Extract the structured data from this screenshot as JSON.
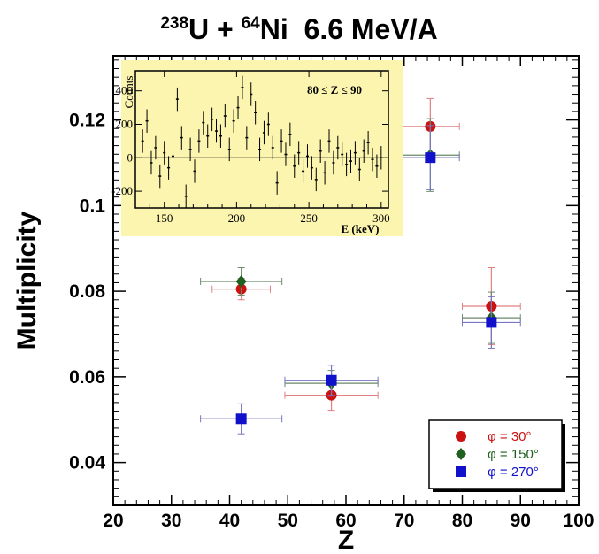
{
  "chart_data": [
    {
      "type": "scatter",
      "title_parts": {
        "a_mass": "238",
        "a_sym": "U + ",
        "b_mass": "64",
        "b_sym": "Ni",
        "rest": "  6.6 MeV/A"
      },
      "xlabel": "Z",
      "ylabel": "Multiplicity",
      "xlim": [
        20,
        100
      ],
      "ylim": [
        0.03,
        0.135
      ],
      "xticks": [
        20,
        30,
        40,
        50,
        60,
        70,
        80,
        90,
        100
      ],
      "yticks": [
        0.04,
        0.06,
        0.08,
        0.1,
        0.12
      ],
      "ytick_labels": [
        "0.04",
        "0.06",
        "0.08",
        "0.1",
        "0.12"
      ],
      "grid": false,
      "legend_position": "bottom-right",
      "series": [
        {
          "name": "φ = 30°",
          "color": "#cc1111",
          "marker": "circle",
          "errcolor": "#e08080",
          "points": [
            {
              "x": 42,
              "y": 0.0805,
              "xerr": 5,
              "yerr": 0.0025
            },
            {
              "x": 57.5,
              "y": 0.0557,
              "xerr": 8,
              "yerr": 0.0035
            },
            {
              "x": 74.5,
              "y": 0.1185,
              "xerr": 5,
              "yerr": 0.0065
            },
            {
              "x": 85,
              "y": 0.0765,
              "xerr": 5,
              "yerr": 0.009
            }
          ]
        },
        {
          "name": "φ = 150°",
          "color": "#1f5f1f",
          "marker": "diamond",
          "errcolor": "#6a8a6a",
          "points": [
            {
              "x": 42,
              "y": 0.0823,
              "xerr": 7,
              "yerr": 0.0032
            },
            {
              "x": 57.5,
              "y": 0.0585,
              "xerr": 8,
              "yerr": 0.003
            },
            {
              "x": 74.5,
              "y": 0.1118,
              "xerr": 5,
              "yerr": 0.0085
            },
            {
              "x": 85,
              "y": 0.0738,
              "xerr": 5,
              "yerr": 0.006
            }
          ]
        },
        {
          "name": "φ = 270°",
          "color": "#1111cc",
          "marker": "square",
          "errcolor": "#7777c0",
          "points": [
            {
              "x": 42,
              "y": 0.0502,
              "xerr": 7,
              "yerr": 0.0035
            },
            {
              "x": 57.5,
              "y": 0.0592,
              "xerr": 8,
              "yerr": 0.0035
            },
            {
              "x": 74.5,
              "y": 0.1112,
              "xerr": 5,
              "yerr": 0.0075
            },
            {
              "x": 85,
              "y": 0.0727,
              "xerr": 5,
              "yerr": 0.006
            }
          ]
        }
      ]
    },
    {
      "type": "scatter",
      "background": "#fbf5b0",
      "ylabel": "Counts",
      "xlabel": "E (keV)",
      "annotation": "80 ≤ Z ≤ 90",
      "xlim": [
        130,
        305
      ],
      "ylim": [
        -300,
        520
      ],
      "xticks": [
        150,
        200,
        250,
        300
      ],
      "yticks": [
        -200,
        0,
        200,
        400
      ],
      "zero_line": true,
      "points": [
        {
          "x": 135,
          "y": 100,
          "yerr": 140
        },
        {
          "x": 138,
          "y": 220,
          "yerr": 140
        },
        {
          "x": 141,
          "y": -30,
          "yerr": 140
        },
        {
          "x": 144,
          "y": 60,
          "yerr": 140
        },
        {
          "x": 147,
          "y": -110,
          "yerr": 140
        },
        {
          "x": 150,
          "y": 30,
          "yerr": 140
        },
        {
          "x": 153,
          "y": -60,
          "yerr": 140
        },
        {
          "x": 156,
          "y": 10,
          "yerr": 140
        },
        {
          "x": 159,
          "y": 350,
          "yerr": 140
        },
        {
          "x": 162,
          "y": 120,
          "yerr": 140
        },
        {
          "x": 165,
          "y": -230,
          "yerr": 140
        },
        {
          "x": 168,
          "y": 50,
          "yerr": 140
        },
        {
          "x": 171,
          "y": -80,
          "yerr": 140
        },
        {
          "x": 174,
          "y": 100,
          "yerr": 140
        },
        {
          "x": 177,
          "y": 210,
          "yerr": 140
        },
        {
          "x": 180,
          "y": 130,
          "yerr": 140
        },
        {
          "x": 183,
          "y": 230,
          "yerr": 140
        },
        {
          "x": 186,
          "y": 160,
          "yerr": 140
        },
        {
          "x": 189,
          "y": 130,
          "yerr": 140
        },
        {
          "x": 192,
          "y": 250,
          "yerr": 140
        },
        {
          "x": 195,
          "y": 50,
          "yerr": 140
        },
        {
          "x": 198,
          "y": 220,
          "yerr": 140
        },
        {
          "x": 201,
          "y": 300,
          "yerr": 140
        },
        {
          "x": 204,
          "y": 420,
          "yerr": 140
        },
        {
          "x": 207,
          "y": 120,
          "yerr": 140
        },
        {
          "x": 210,
          "y": 380,
          "yerr": 140
        },
        {
          "x": 213,
          "y": 270,
          "yerr": 140
        },
        {
          "x": 216,
          "y": 50,
          "yerr": 140
        },
        {
          "x": 219,
          "y": 150,
          "yerr": 140
        },
        {
          "x": 222,
          "y": 200,
          "yerr": 140
        },
        {
          "x": 225,
          "y": 60,
          "yerr": 140
        },
        {
          "x": 228,
          "y": -150,
          "yerr": 140
        },
        {
          "x": 231,
          "y": 100,
          "yerr": 140
        },
        {
          "x": 234,
          "y": 20,
          "yerr": 140
        },
        {
          "x": 237,
          "y": 140,
          "yerr": 140
        },
        {
          "x": 240,
          "y": -50,
          "yerr": 140
        },
        {
          "x": 243,
          "y": 30,
          "yerr": 140
        },
        {
          "x": 246,
          "y": -80,
          "yerr": 140
        },
        {
          "x": 249,
          "y": 10,
          "yerr": 140
        },
        {
          "x": 252,
          "y": -60,
          "yerr": 140
        },
        {
          "x": 255,
          "y": -130,
          "yerr": 140
        },
        {
          "x": 258,
          "y": 40,
          "yerr": 140
        },
        {
          "x": 261,
          "y": -90,
          "yerr": 140
        },
        {
          "x": 264,
          "y": 100,
          "yerr": 140
        },
        {
          "x": 267,
          "y": -30,
          "yerr": 140
        },
        {
          "x": 270,
          "y": 60,
          "yerr": 140
        },
        {
          "x": 273,
          "y": 20,
          "yerr": 140
        },
        {
          "x": 276,
          "y": -40,
          "yerr": 140
        },
        {
          "x": 279,
          "y": -20,
          "yerr": 140
        },
        {
          "x": 282,
          "y": 30,
          "yerr": 140
        },
        {
          "x": 285,
          "y": -70,
          "yerr": 140
        },
        {
          "x": 288,
          "y": 40,
          "yerr": 140
        },
        {
          "x": 291,
          "y": 90,
          "yerr": 140
        },
        {
          "x": 294,
          "y": -10,
          "yerr": 140
        },
        {
          "x": 297,
          "y": -50,
          "yerr": 140
        },
        {
          "x": 300,
          "y": 0,
          "yerr": 140
        }
      ]
    }
  ]
}
